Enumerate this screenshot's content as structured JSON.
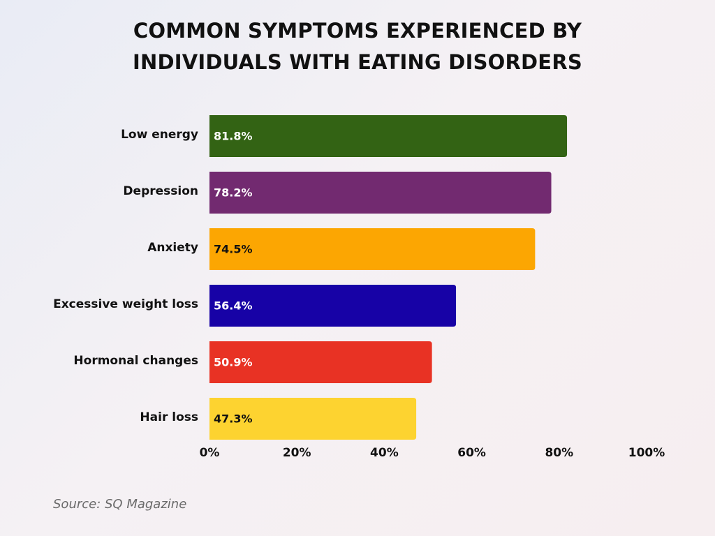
{
  "title_line1": "COMMON SYMPTOMS EXPERIENCED BY",
  "title_line2": "INDIVIDUALS WITH EATING DISORDERS",
  "source": "Source: SQ Magazine",
  "chart_data": {
    "type": "bar",
    "orientation": "horizontal",
    "title": "COMMON SYMPTOMS EXPERIENCED BY INDIVIDUALS WITH EATING DISORDERS",
    "categories": [
      "Low energy",
      "Depression",
      "Anxiety",
      "Excessive weight loss",
      "Hormonal changes",
      "Hair loss"
    ],
    "values": [
      81.8,
      78.2,
      74.5,
      56.4,
      50.9,
      47.3
    ],
    "data_labels": [
      "81.8%",
      "78.2%",
      "74.5%",
      "56.4%",
      "50.9%",
      "47.3%"
    ],
    "colors": [
      "#336314",
      "#722a70",
      "#fca602",
      "#1702a6",
      "#e83224",
      "#fdd330"
    ],
    "label_colors": [
      "#ffffff",
      "#ffffff",
      "#111111",
      "#ffffff",
      "#ffffff",
      "#111111"
    ],
    "xlim": [
      0,
      100
    ],
    "xticks": [
      0,
      20,
      40,
      60,
      80,
      100
    ],
    "xtick_labels": [
      "0%",
      "20%",
      "40%",
      "60%",
      "80%",
      "100%"
    ],
    "xlabel": "",
    "ylabel": "",
    "grid": false
  }
}
